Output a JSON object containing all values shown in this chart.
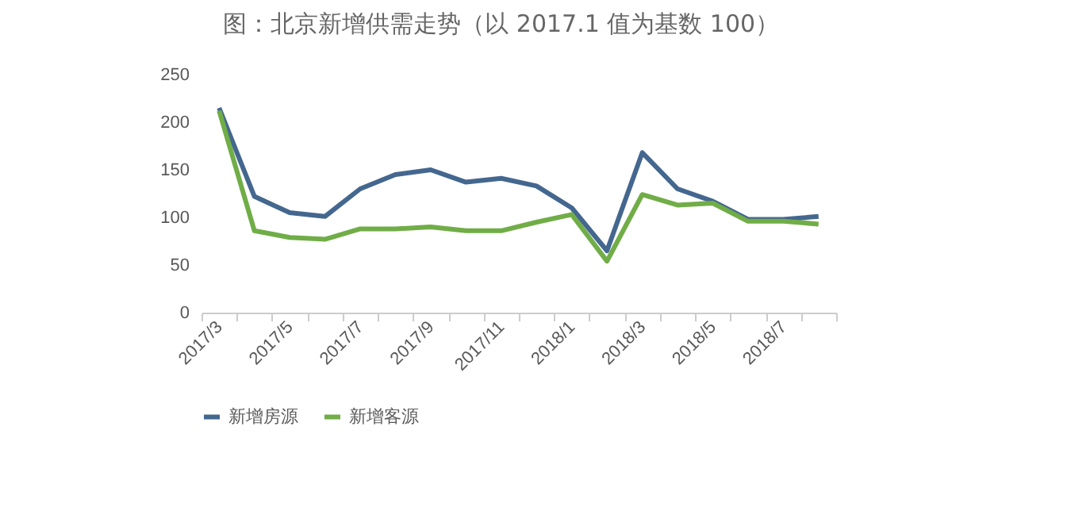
{
  "chart_data": {
    "type": "line",
    "title": "图：北京新增供需走势（以 2017.1 值为基数 100）",
    "categories": [
      "2017/3",
      null,
      "2017/5",
      null,
      "2017/7",
      null,
      "2017/9",
      null,
      "2017/11",
      null,
      "2018/1",
      null,
      "2018/3",
      null,
      "2018/5",
      null,
      "2018/7",
      null
    ],
    "series": [
      {
        "name": "新增房源",
        "color": "#44678f",
        "values": [
          215,
          122,
          105,
          101,
          130,
          145,
          150,
          137,
          141,
          133,
          110,
          65,
          168,
          130,
          117,
          98,
          98,
          101
        ]
      },
      {
        "name": "新增客源",
        "color": "#70ad47",
        "values": [
          212,
          86,
          79,
          77,
          88,
          88,
          90,
          86,
          86,
          95,
          103,
          54,
          124,
          113,
          115,
          96,
          96,
          93
        ]
      }
    ],
    "ylim": [
      0,
      250
    ],
    "yticks": [
      0,
      50,
      100,
      150,
      200,
      250
    ],
    "grid": false,
    "legend": "bottom",
    "marker": "none",
    "line_style": "solid"
  }
}
